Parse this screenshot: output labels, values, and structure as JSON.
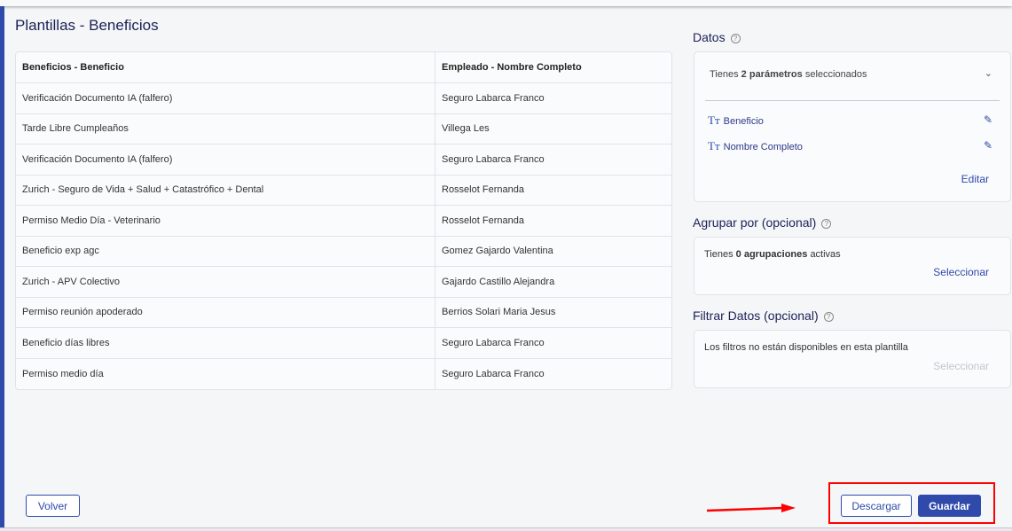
{
  "page_title": "Plantillas - Beneficios",
  "table": {
    "headers": [
      "Beneficios - Beneficio",
      "Empleado - Nombre Completo"
    ],
    "rows": [
      [
        "Verificación Documento IA (falfero)",
        "Seguro Labarca Franco"
      ],
      [
        "Tarde Libre Cumpleaños",
        "Villega Les"
      ],
      [
        "Verificación Documento IA (falfero)",
        "Seguro Labarca Franco"
      ],
      [
        "Zurich - Seguro de Vida + Salud + Catastrófico + Dental",
        "Rosselot Fernanda"
      ],
      [
        "Permiso Medio Día - Veterinario",
        "Rosselot Fernanda"
      ],
      [
        "Beneficio exp agc",
        "Gomez Gajardo Valentina"
      ],
      [
        "Zurich - APV Colectivo",
        "Gajardo Castillo Alejandra"
      ],
      [
        "Permiso reunión apoderado",
        "Berrios Solari Maria Jesus"
      ],
      [
        "Beneficio días libres",
        "Seguro Labarca Franco"
      ],
      [
        "Permiso medio día",
        "Seguro Labarca Franco"
      ]
    ]
  },
  "datos": {
    "title": "Datos",
    "summary_pre": "Tienes",
    "summary_bold": "2 parámetros",
    "summary_post": "seleccionados",
    "params": [
      "Beneficio",
      "Nombre Completo"
    ],
    "param_icon": "Tт",
    "edit": "Editar"
  },
  "agrupar": {
    "title": "Agrupar por (opcional)",
    "pre": "Tienes",
    "bold": "0 agrupaciones",
    "post": "activas",
    "action": "Seleccionar"
  },
  "filtrar": {
    "title": "Filtrar Datos (opcional)",
    "text": "Los filtros no están disponibles en esta plantilla",
    "action": "Seleccionar"
  },
  "buttons": {
    "back": "Volver",
    "download": "Descargar",
    "save": "Guardar"
  },
  "colors": {
    "primary": "#2f4aaa",
    "title": "#1b2156",
    "annotation": "#ff0000"
  }
}
